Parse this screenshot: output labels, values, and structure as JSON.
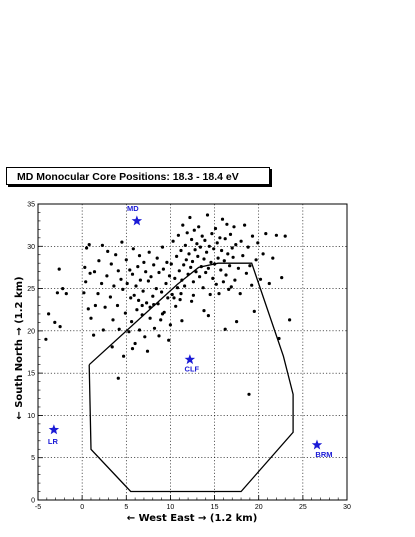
{
  "chart_data": {
    "type": "scatter",
    "title": "MD Monocular Core Positions: 18.3 - 18.4 eV",
    "xlabel": "← West East → (1.2 km)",
    "ylabel": "← South North → (1.2 km)",
    "xlim": [
      -5,
      30
    ],
    "ylim": [
      0,
      35
    ],
    "grid": true,
    "x_ticks": [
      "-5",
      "0",
      "5",
      "10",
      "15",
      "20",
      "25",
      "30"
    ],
    "y_ticks": [
      "0",
      "5",
      "10",
      "15",
      "20",
      "25",
      "30",
      "35"
    ],
    "markers": [
      {
        "label": "MD",
        "x": 6.2,
        "y": 33.0
      },
      {
        "label": "CLF",
        "x": 12.2,
        "y": 16.6
      },
      {
        "label": "LR",
        "x": -3.2,
        "y": 8.3
      },
      {
        "label": "BRM",
        "x": 26.6,
        "y": 6.5
      }
    ],
    "boundary": [
      [
        0.8,
        16
      ],
      [
        1.0,
        6
      ],
      [
        5.5,
        1
      ],
      [
        18,
        1
      ],
      [
        23.9,
        8
      ],
      [
        23.9,
        12.5
      ],
      [
        22.8,
        17
      ],
      [
        19.2,
        28
      ],
      [
        15.4,
        28
      ],
      [
        13.2,
        27.5
      ],
      [
        10.8,
        25.5
      ],
      [
        0.8,
        16
      ]
    ],
    "points": [
      [
        -4.1,
        19
      ],
      [
        -3.8,
        22
      ],
      [
        -3.1,
        21
      ],
      [
        -2.5,
        20.5
      ],
      [
        -2.8,
        24.5
      ],
      [
        -2.2,
        25
      ],
      [
        -1.8,
        24.4
      ],
      [
        -2.6,
        27.3
      ],
      [
        0.2,
        24.5
      ],
      [
        0.4,
        25.8
      ],
      [
        0.3,
        27.5
      ],
      [
        0.5,
        29.8
      ],
      [
        0.8,
        30.2
      ],
      [
        0.9,
        26.8
      ],
      [
        0.7,
        22.6
      ],
      [
        1,
        21.5
      ],
      [
        1.3,
        19.5
      ],
      [
        1.5,
        23
      ],
      [
        1.4,
        27
      ],
      [
        1.8,
        24.4
      ],
      [
        1.9,
        28.3
      ],
      [
        2.2,
        25.6
      ],
      [
        2.3,
        30.1
      ],
      [
        2.4,
        20.1
      ],
      [
        2.6,
        22.8
      ],
      [
        2.8,
        26.5
      ],
      [
        2.9,
        29.4
      ],
      [
        3.2,
        24
      ],
      [
        3.3,
        27.9
      ],
      [
        3.4,
        18.1
      ],
      [
        3.5,
        21.3
      ],
      [
        3.6,
        25.3
      ],
      [
        3.8,
        29
      ],
      [
        4,
        23
      ],
      [
        4.1,
        27.1
      ],
      [
        4.2,
        20.2
      ],
      [
        4.4,
        26.1
      ],
      [
        4.5,
        30.5
      ],
      [
        4.6,
        24.9
      ],
      [
        4.7,
        17
      ],
      [
        4.9,
        22.1
      ],
      [
        5,
        28.4
      ],
      [
        5.1,
        25.6
      ],
      [
        5.3,
        19.9
      ],
      [
        5.4,
        27.2
      ],
      [
        5.5,
        23.9
      ],
      [
        5.6,
        21.1
      ],
      [
        5.7,
        26.7
      ],
      [
        5.8,
        29.7
      ],
      [
        5.9,
        24.2
      ],
      [
        6,
        18.5
      ],
      [
        6.1,
        25.3
      ],
      [
        6.2,
        22.5
      ],
      [
        6.3,
        27.6
      ],
      [
        6.4,
        23.6
      ],
      [
        6.5,
        28.9
      ],
      [
        6.6,
        26
      ],
      [
        6.8,
        21.9
      ],
      [
        6.9,
        24.7
      ],
      [
        7,
        28.1
      ],
      [
        7.1,
        19.3
      ],
      [
        7.2,
        27
      ],
      [
        7.3,
        23.3
      ],
      [
        7.5,
        25.9
      ],
      [
        7.6,
        29.3
      ],
      [
        7.7,
        22.8
      ],
      [
        7.8,
        26.4
      ],
      [
        8,
        24.1
      ],
      [
        8.1,
        27.8
      ],
      [
        8.2,
        20.3
      ],
      [
        8.4,
        25
      ],
      [
        8.5,
        28.6
      ],
      [
        8.6,
        23.2
      ],
      [
        8.7,
        26.9
      ],
      [
        8.9,
        21.3
      ],
      [
        9,
        24.6
      ],
      [
        9.1,
        29.9
      ],
      [
        9.2,
        27.3
      ],
      [
        9.3,
        22.2
      ],
      [
        9.5,
        25.6
      ],
      [
        9.6,
        28.1
      ],
      [
        9.7,
        23.9
      ],
      [
        9.9,
        26.5
      ],
      [
        10,
        20.7
      ],
      [
        10.1,
        27.9
      ],
      [
        10.2,
        24.3
      ],
      [
        10.3,
        30.6
      ],
      [
        10.5,
        26.2
      ],
      [
        10.6,
        22.9
      ],
      [
        10.7,
        28.8
      ],
      [
        10.8,
        25.1
      ],
      [
        10.9,
        31.3
      ],
      [
        11,
        27.1
      ],
      [
        11.1,
        23.7
      ],
      [
        11.2,
        29.5
      ],
      [
        11.3,
        26
      ],
      [
        11.4,
        32.5
      ],
      [
        11.5,
        27.8
      ],
      [
        11.6,
        25.3
      ],
      [
        11.7,
        30.1
      ],
      [
        11.8,
        28.4
      ],
      [
        11.9,
        31.6
      ],
      [
        12,
        26.7
      ],
      [
        12.1,
        29.1
      ],
      [
        12.2,
        33.4
      ],
      [
        12.3,
        27.5
      ],
      [
        12.4,
        30.8
      ],
      [
        12.5,
        28.2
      ],
      [
        12.6,
        25.8
      ],
      [
        12.7,
        31.9
      ],
      [
        12.8,
        29.6
      ],
      [
        12.9,
        27
      ],
      [
        13,
        30.3
      ],
      [
        13.1,
        28.8
      ],
      [
        13.2,
        32.3
      ],
      [
        13.3,
        26.4
      ],
      [
        13.4,
        29.9
      ],
      [
        13.5,
        27.6
      ],
      [
        13.6,
        31.2
      ],
      [
        13.7,
        25.1
      ],
      [
        13.8,
        28.5
      ],
      [
        13.9,
        30.7
      ],
      [
        14,
        26.9
      ],
      [
        14.1,
        29.3
      ],
      [
        14.2,
        33.7
      ],
      [
        14.3,
        27.4
      ],
      [
        14.4,
        30
      ],
      [
        14.5,
        24.3
      ],
      [
        14.6,
        28.1
      ],
      [
        14.7,
        31.5
      ],
      [
        14.8,
        26.2
      ],
      [
        14.9,
        29.7
      ],
      [
        15,
        27.9
      ],
      [
        15.1,
        32.1
      ],
      [
        15.2,
        25.5
      ],
      [
        15.3,
        30.4
      ],
      [
        15.4,
        28.6
      ],
      [
        15.5,
        24.4
      ],
      [
        15.6,
        31
      ],
      [
        15.7,
        27.2
      ],
      [
        15.8,
        29.5
      ],
      [
        15.9,
        33.2
      ],
      [
        16,
        25.8
      ],
      [
        16.1,
        28.3
      ],
      [
        16.2,
        30.9
      ],
      [
        16.3,
        26.6
      ],
      [
        16.4,
        32.6
      ],
      [
        16.5,
        29.1
      ],
      [
        16.6,
        24.9
      ],
      [
        16.7,
        27.7
      ],
      [
        16.8,
        31.4
      ],
      [
        16.9,
        25.2
      ],
      [
        17,
        29.8
      ],
      [
        17.1,
        28.7
      ],
      [
        17.2,
        32.3
      ],
      [
        17.3,
        26
      ],
      [
        17.4,
        30.2
      ],
      [
        17.5,
        21.1
      ],
      [
        17.7,
        27.4
      ],
      [
        17.9,
        24.4
      ],
      [
        18,
        30.6
      ],
      [
        18.2,
        28.9
      ],
      [
        18.4,
        32.5
      ],
      [
        18.6,
        26.8
      ],
      [
        18.8,
        29.9
      ],
      [
        19,
        27.7
      ],
      [
        19.2,
        25.4
      ],
      [
        19.3,
        31.2
      ],
      [
        19.5,
        22.3
      ],
      [
        19.7,
        28.4
      ],
      [
        19.9,
        30.4
      ],
      [
        20.2,
        26.1
      ],
      [
        20.5,
        29.1
      ],
      [
        20.8,
        31.5
      ],
      [
        21.2,
        25.6
      ],
      [
        21.6,
        28.6
      ],
      [
        22,
        31.3
      ],
      [
        22.3,
        19.1
      ],
      [
        22.6,
        26.3
      ],
      [
        23,
        31.2
      ],
      [
        23.5,
        21.3
      ],
      [
        16.2,
        20.2
      ],
      [
        18.9,
        12.5
      ],
      [
        14.3,
        21.8
      ],
      [
        12.4,
        23.5
      ],
      [
        11.3,
        21.2
      ],
      [
        9.8,
        18.9
      ],
      [
        9.1,
        22
      ],
      [
        8.1,
        23.1
      ],
      [
        7.4,
        17.6
      ],
      [
        6.5,
        20.1
      ],
      [
        5.7,
        17.9
      ],
      [
        4.1,
        14.4
      ],
      [
        10.4,
        23.9
      ],
      [
        11.2,
        24.4
      ],
      [
        12.6,
        24.2
      ],
      [
        13.8,
        22.4
      ],
      [
        8.7,
        19.4
      ],
      [
        7.7,
        21.5
      ],
      [
        6.8,
        23
      ]
    ]
  }
}
